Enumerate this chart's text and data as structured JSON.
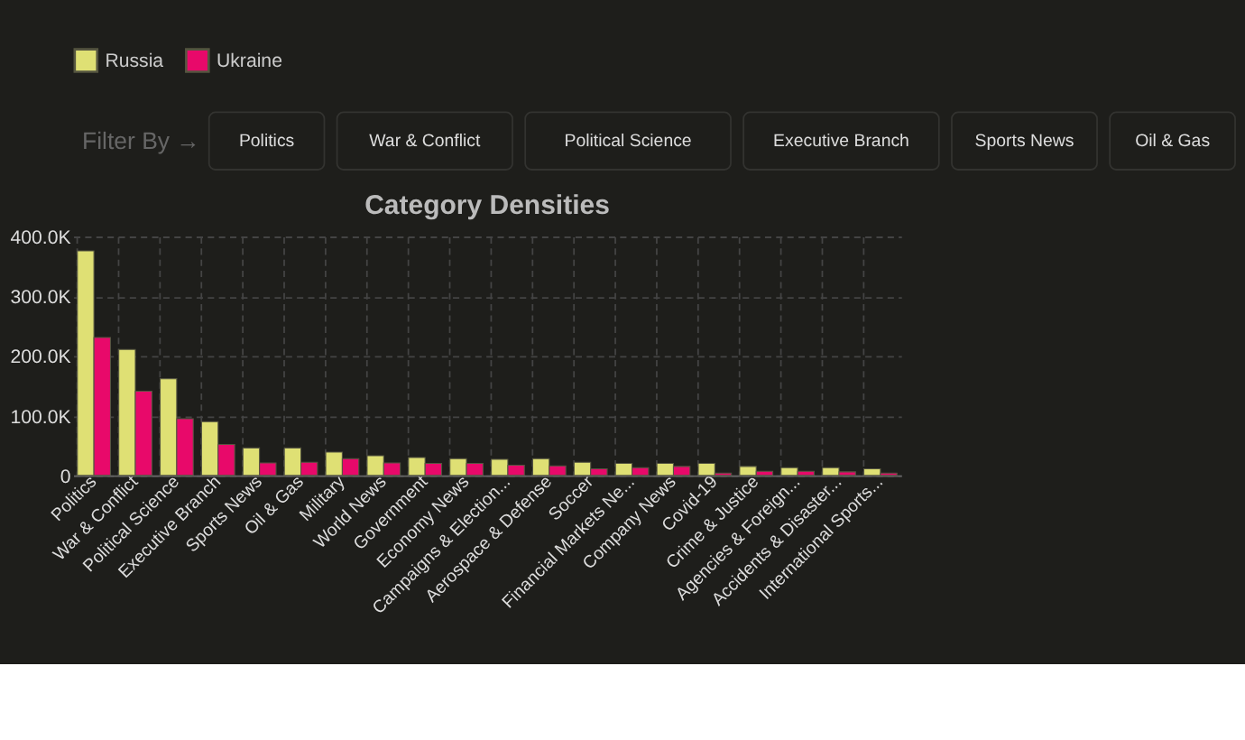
{
  "chart_data": {
    "type": "bar",
    "title": "Category Densities",
    "annotations": [
      "Filter By →",
      "Politics",
      "War & Conflict",
      "Political Science",
      "Executive Branch",
      "Sports News",
      "Oil & Gas"
    ],
    "categories": [
      "Politics",
      "War & Conflict",
      "Political Science",
      "Executive Branch",
      "Sports News",
      "Oil & Gas",
      "Military",
      "World News",
      "Government",
      "Economy News",
      "Campaigns & Election...",
      "Aerospace & Defense",
      "Soccer",
      "Financial Markets Ne...",
      "Company News",
      "Covid-19",
      "Crime & Justice",
      "Agencies & Foreign...",
      "Accidents & Disaster...",
      "International Sports..."
    ],
    "series": [
      {
        "name": "Russia",
        "color": "#dfe074",
        "values": [
          376000,
          211000,
          162000,
          90000,
          46000,
          46000,
          39000,
          33000,
          30000,
          28000,
          27000,
          28000,
          22000,
          20000,
          20000,
          20000,
          15000,
          13000,
          13000,
          11000
        ]
      },
      {
        "name": "Ukraine",
        "color": "#e8096a",
        "values": [
          231000,
          141000,
          95000,
          52000,
          21000,
          22000,
          28000,
          21000,
          20000,
          20000,
          17000,
          16000,
          11000,
          13000,
          15000,
          4000,
          7000,
          7000,
          6000,
          4000
        ]
      }
    ],
    "ylim": [
      0,
      400000
    ],
    "yticks": [
      {
        "value": 0,
        "label": "0"
      },
      {
        "value": 100000,
        "label": "100.0K"
      },
      {
        "value": 200000,
        "label": "200.0K"
      },
      {
        "value": 300000,
        "label": "300.0K"
      },
      {
        "value": 400000,
        "label": "400.0K"
      }
    ],
    "grid": true,
    "legend": "top"
  }
}
